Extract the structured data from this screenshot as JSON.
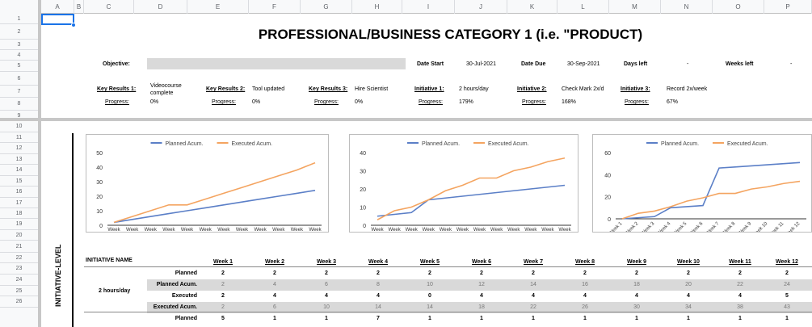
{
  "columns": [
    "A",
    "B",
    "C",
    "D",
    "E",
    "F",
    "G",
    "H",
    "I",
    "J",
    "K",
    "L",
    "M",
    "N",
    "O",
    "P"
  ],
  "rows": [
    "1",
    "2",
    "3",
    "4",
    "5",
    "6",
    "7",
    "8",
    "9",
    "10",
    "11",
    "12",
    "13",
    "14",
    "15",
    "16",
    "17",
    "18",
    "19",
    "20",
    "21",
    "22",
    "23",
    "24",
    "25",
    "26"
  ],
  "title": "PROFESSIONAL/BUSINESS CATEGORY 1 (i.e. \"PRODUCT)",
  "header": {
    "objective_label": "Objective:",
    "date_start_label": "Date Start",
    "date_start": "30-Jul-2021",
    "date_due_label": "Date Due",
    "date_due": "30-Sep-2021",
    "days_left_label": "Days left",
    "days_left": "-",
    "weeks_left_label": "Weeks left",
    "weeks_left": "-"
  },
  "key_results": [
    {
      "label": "Key Results 1:",
      "value": "Videocourse complete",
      "progress_label": "Progress:",
      "progress": "0%"
    },
    {
      "label": "Key Results 2:",
      "value": "Tool updated",
      "progress_label": "Progress:",
      "progress": "0%"
    },
    {
      "label": "Key Results 3:",
      "value": "Hire Scientist",
      "progress_label": "Progress:",
      "progress": "0%"
    }
  ],
  "initiatives": [
    {
      "label": "Initiative 1:",
      "value": "2 hours/day",
      "progress_label": "Progress:",
      "progress": "179%"
    },
    {
      "label": "Initiative 2:",
      "value": "Check Mark 2x/d",
      "progress_label": "Progress:",
      "progress": "168%"
    },
    {
      "label": "Initiative 3:",
      "value": "Record 2x/week",
      "progress_label": "Progress:",
      "progress": "67%"
    }
  ],
  "side_label": "INITIATIVE-LEVEL",
  "chart_data": [
    {
      "type": "line",
      "series": [
        {
          "name": "Planned Acum.",
          "color": "#5b7fc7",
          "values": [
            2,
            4,
            6,
            8,
            10,
            12,
            14,
            16,
            18,
            20,
            22,
            24
          ]
        },
        {
          "name": "Executed Acum.",
          "color": "#f4a460",
          "values": [
            2,
            6,
            10,
            14,
            14,
            18,
            22,
            26,
            30,
            34,
            38,
            43
          ]
        }
      ],
      "categories": [
        "Week 1",
        "Week 2",
        "Week 3",
        "Week 4",
        "Week 5",
        "Week 6",
        "Week 7",
        "Week 8",
        "Week 9",
        "Week 10",
        "Week 11",
        "Week 12"
      ],
      "ylim": [
        0,
        50
      ],
      "yticks": [
        0,
        10,
        20,
        30,
        40,
        50
      ]
    },
    {
      "type": "line",
      "series": [
        {
          "name": "Planned Acum.",
          "color": "#5b7fc7",
          "values": [
            5,
            6,
            7,
            14,
            15,
            16,
            17,
            18,
            19,
            20,
            21,
            22
          ]
        },
        {
          "name": "Executed Acum.",
          "color": "#f4a460",
          "values": [
            3,
            8,
            10,
            14,
            19,
            22,
            26,
            26,
            30,
            32,
            35,
            37
          ]
        }
      ],
      "categories": [
        "Week 1",
        "Week 2",
        "Week 3",
        "Week 4",
        "Week 5",
        "Week 6",
        "Week 7",
        "Week 8",
        "Week 9",
        "Week 10",
        "Week 11",
        "Week 12"
      ],
      "ylim": [
        0,
        40
      ],
      "yticks": [
        0,
        10,
        20,
        30,
        40
      ]
    },
    {
      "type": "line",
      "series": [
        {
          "name": "Planned Acum.",
          "color": "#5b7fc7",
          "values": [
            0,
            1,
            2,
            10,
            11,
            12,
            46,
            47,
            48,
            49,
            50,
            51
          ]
        },
        {
          "name": "Executed Acum.",
          "color": "#f4a460",
          "values": [
            0,
            5,
            7,
            11,
            16,
            19,
            23,
            23,
            27,
            29,
            32,
            34
          ]
        }
      ],
      "categories": [
        "Week 1",
        "Week 2",
        "Week 3",
        "Week 4",
        "Week 5",
        "Week 6",
        "Week 7",
        "Week 8",
        "Week 9",
        "Week 10",
        "Week 11",
        "Week 12"
      ],
      "ylim": [
        0,
        60
      ],
      "yticks": [
        0,
        20,
        40,
        60
      ],
      "rotated_labels": true
    }
  ],
  "table": {
    "name_header": "INITIATIVE NAME",
    "weeks": [
      "Week 1",
      "Week 2",
      "Week 3",
      "Week 4",
      "Week 5",
      "Week 6",
      "Week 7",
      "Week 8",
      "Week 9",
      "Week 10",
      "Week 11",
      "Week 12"
    ],
    "group_name": "2 hours/day",
    "rows": [
      {
        "label": "Planned",
        "grey": false,
        "values": [
          "2",
          "2",
          "2",
          "2",
          "2",
          "2",
          "2",
          "2",
          "2",
          "2",
          "2",
          "2"
        ]
      },
      {
        "label": "Planned Acum.",
        "grey": true,
        "values": [
          "2",
          "4",
          "6",
          "8",
          "10",
          "12",
          "14",
          "16",
          "18",
          "20",
          "22",
          "24"
        ]
      },
      {
        "label": "Executed",
        "grey": false,
        "values": [
          "2",
          "4",
          "4",
          "4",
          "0",
          "4",
          "4",
          "4",
          "4",
          "4",
          "4",
          "5"
        ]
      },
      {
        "label": "Executed Acum.",
        "grey": true,
        "values": [
          "2",
          "6",
          "10",
          "14",
          "14",
          "18",
          "22",
          "26",
          "30",
          "34",
          "38",
          "43"
        ]
      },
      {
        "label": "Planned",
        "grey": false,
        "values": [
          "5",
          "1",
          "1",
          "7",
          "1",
          "1",
          "1",
          "1",
          "1",
          "1",
          "1",
          "1"
        ]
      }
    ]
  }
}
